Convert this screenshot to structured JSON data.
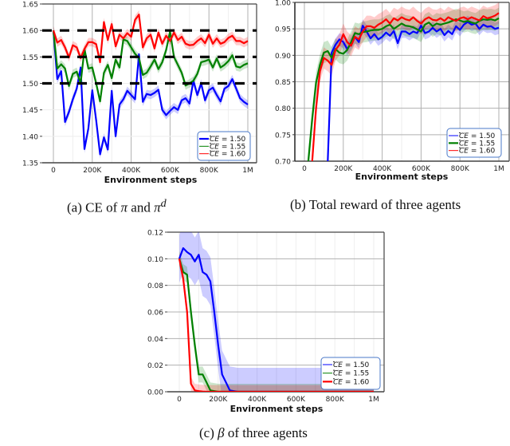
{
  "chart_data": [
    {
      "id": "a",
      "type": "line",
      "title": "",
      "caption": "(a) CE of π and π^d",
      "caption_parts": {
        "prefix": "(a) CE of ",
        "sym1": "π",
        "mid": " and ",
        "sym2": "π",
        "sup": "d"
      },
      "xlabel": "Environment steps",
      "ylabel": "",
      "xlim": [
        0,
        1000000
      ],
      "ylim": [
        1.35,
        1.65
      ],
      "xticks": [
        0,
        200000,
        400000,
        600000,
        800000,
        1000000
      ],
      "xtick_labels": [
        "0",
        "200K",
        "400K",
        "600K",
        "800K",
        "1M"
      ],
      "yticks": [
        1.35,
        1.4,
        1.45,
        1.5,
        1.55,
        1.6,
        1.65
      ],
      "ytick_labels": [
        "1.35",
        "1.40",
        "1.45",
        "1.50",
        "1.55",
        "1.60",
        "1.65"
      ],
      "grid": "vertical-major",
      "reference_lines": [
        1.6,
        1.55,
        1.5
      ],
      "legend_position": "lower right",
      "legend": [
        "CE = 1.50",
        "CE = 1.55",
        "CE = 1.60"
      ],
      "x": [
        0,
        20000,
        40000,
        60000,
        80000,
        100000,
        120000,
        140000,
        160000,
        180000,
        200000,
        220000,
        240000,
        260000,
        280000,
        300000,
        320000,
        340000,
        360000,
        380000,
        400000,
        420000,
        440000,
        460000,
        480000,
        500000,
        520000,
        540000,
        560000,
        580000,
        600000,
        620000,
        640000,
        660000,
        680000,
        700000,
        720000,
        740000,
        760000,
        780000,
        800000,
        820000,
        840000,
        860000,
        880000,
        900000,
        920000,
        940000,
        960000,
        980000,
        1000000
      ],
      "series": [
        {
          "name": "CE = 1.50",
          "color": "#0000ff",
          "band": 0.008,
          "values": [
            1.6,
            1.508,
            1.523,
            1.427,
            1.446,
            1.47,
            1.49,
            1.53,
            1.376,
            1.415,
            1.487,
            1.43,
            1.366,
            1.398,
            1.375,
            1.486,
            1.4,
            1.46,
            1.47,
            1.486,
            1.478,
            1.47,
            1.555,
            1.465,
            1.48,
            1.478,
            1.482,
            1.488,
            1.45,
            1.44,
            1.448,
            1.455,
            1.45,
            1.468,
            1.472,
            1.462,
            1.505,
            1.478,
            1.5,
            1.468,
            1.487,
            1.492,
            1.478,
            1.466,
            1.49,
            1.495,
            1.508,
            1.49,
            1.472,
            1.465,
            1.46
          ]
        },
        {
          "name": "CE = 1.55",
          "color": "#008000",
          "band": 0.008,
          "values": [
            1.6,
            1.528,
            1.536,
            1.528,
            1.495,
            1.518,
            1.522,
            1.5,
            1.565,
            1.528,
            1.53,
            1.5,
            1.466,
            1.52,
            1.535,
            1.51,
            1.545,
            1.53,
            1.583,
            1.58,
            1.568,
            1.556,
            1.548,
            1.516,
            1.52,
            1.532,
            1.545,
            1.527,
            1.54,
            1.563,
            1.598,
            1.55,
            1.535,
            1.52,
            1.496,
            1.5,
            1.505,
            1.518,
            1.54,
            1.542,
            1.545,
            1.53,
            1.547,
            1.53,
            1.535,
            1.542,
            1.553,
            1.532,
            1.53,
            1.535,
            1.538
          ]
        },
        {
          "name": "CE = 1.60",
          "color": "#ff0000",
          "band": 0.008,
          "values": [
            1.6,
            1.577,
            1.582,
            1.568,
            1.549,
            1.572,
            1.568,
            1.548,
            1.565,
            1.578,
            1.578,
            1.574,
            1.54,
            1.616,
            1.582,
            1.612,
            1.57,
            1.592,
            1.585,
            1.595,
            1.588,
            1.62,
            1.63,
            1.568,
            1.585,
            1.592,
            1.566,
            1.596,
            1.575,
            1.59,
            1.58,
            1.596,
            1.582,
            1.588,
            1.575,
            1.572,
            1.573,
            1.58,
            1.585,
            1.576,
            1.592,
            1.575,
            1.585,
            1.575,
            1.578,
            1.586,
            1.59,
            1.58,
            1.58,
            1.576,
            1.58
          ]
        }
      ]
    },
    {
      "id": "b",
      "type": "line",
      "title": "",
      "caption": "(b) Total reward of three agents",
      "xlabel": "Environment steps",
      "ylabel": "",
      "xlim": [
        0,
        1000000
      ],
      "ylim": [
        0.7,
        1.0
      ],
      "xticks": [
        0,
        200000,
        400000,
        600000,
        800000,
        1000000
      ],
      "xtick_labels": [
        "0",
        "200K",
        "400K",
        "600K",
        "800K",
        "1M"
      ],
      "yticks": [
        0.7,
        0.75,
        0.8,
        0.85,
        0.9,
        0.95,
        1.0
      ],
      "ytick_labels": [
        "0.70",
        "0.75",
        "0.80",
        "0.85",
        "0.90",
        "0.95",
        "1.00"
      ],
      "grid": "both",
      "legend_position": "lower right",
      "legend": [
        "CE = 1.50",
        "CE = 1.55",
        "CE = 1.60"
      ],
      "x": [
        0,
        20000,
        40000,
        60000,
        80000,
        100000,
        120000,
        140000,
        160000,
        180000,
        200000,
        220000,
        240000,
        260000,
        280000,
        300000,
        320000,
        340000,
        360000,
        380000,
        400000,
        420000,
        440000,
        460000,
        480000,
        500000,
        520000,
        540000,
        560000,
        580000,
        600000,
        620000,
        640000,
        660000,
        680000,
        700000,
        720000,
        740000,
        760000,
        780000,
        800000,
        820000,
        840000,
        860000,
        880000,
        900000,
        920000,
        940000,
        960000,
        980000,
        1000000
      ],
      "series": [
        {
          "name": "CE = 1.50",
          "color": "#0000ff",
          "band": 0.012,
          "values": [
            null,
            null,
            null,
            null,
            null,
            null,
            0.7,
            0.905,
            0.92,
            0.93,
            0.925,
            0.912,
            0.922,
            0.935,
            0.925,
            0.956,
            0.945,
            0.932,
            0.94,
            0.93,
            0.935,
            0.943,
            0.937,
            0.946,
            0.923,
            0.945,
            0.945,
            0.94,
            0.945,
            0.942,
            0.956,
            0.942,
            0.945,
            0.952,
            0.945,
            0.95,
            0.938,
            0.946,
            0.94,
            0.955,
            0.948,
            0.958,
            0.963,
            0.958,
            0.96,
            0.95,
            0.958,
            0.954,
            0.955,
            0.95,
            0.952
          ]
        },
        {
          "name": "CE = 1.55",
          "color": "#008000",
          "band": 0.02,
          "values": [
            null,
            0.7,
            0.78,
            0.848,
            0.882,
            0.905,
            0.908,
            0.895,
            0.912,
            0.905,
            0.903,
            0.91,
            0.925,
            0.942,
            0.94,
            0.944,
            0.945,
            0.947,
            0.948,
            0.948,
            0.95,
            0.955,
            0.958,
            0.95,
            0.955,
            0.96,
            0.956,
            0.955,
            0.953,
            0.949,
            0.945,
            0.958,
            0.962,
            0.955,
            0.96,
            0.958,
            0.96,
            0.962,
            0.965,
            0.968,
            0.966,
            0.963,
            0.965,
            0.962,
            0.96,
            0.965,
            0.968,
            0.967,
            0.968,
            0.966,
            0.97
          ]
        },
        {
          "name": "CE = 1.60",
          "color": "#ff0000",
          "band": 0.02,
          "values": [
            null,
            null,
            0.7,
            0.8,
            0.87,
            0.895,
            0.89,
            0.882,
            0.91,
            0.92,
            0.94,
            0.925,
            0.918,
            0.935,
            0.93,
            0.945,
            0.955,
            0.955,
            0.952,
            0.958,
            0.962,
            0.968,
            0.96,
            0.97,
            0.966,
            0.972,
            0.968,
            0.966,
            0.972,
            0.965,
            0.96,
            0.968,
            0.972,
            0.967,
            0.966,
            0.97,
            0.965,
            0.972,
            0.968,
            0.965,
            0.97,
            0.972,
            0.968,
            0.972,
            0.969,
            0.966,
            0.974,
            0.97,
            0.972,
            0.975,
            0.98
          ]
        }
      ]
    },
    {
      "id": "c",
      "type": "line",
      "title": "",
      "caption": "(c) β of three agents",
      "caption_parts": {
        "prefix": "(c) ",
        "sym": "β",
        "suffix": " of three agents"
      },
      "xlabel": "Environment steps",
      "ylabel": "",
      "xlim": [
        0,
        1000000
      ],
      "ylim": [
        0.0,
        0.12
      ],
      "xticks": [
        0,
        200000,
        400000,
        600000,
        800000,
        1000000
      ],
      "xtick_labels": [
        "0",
        "200K",
        "400K",
        "600K",
        "800K",
        "1M"
      ],
      "yticks": [
        0.0,
        0.02,
        0.04,
        0.06,
        0.08,
        0.1,
        0.12
      ],
      "ytick_labels": [
        "0.00",
        "0.02",
        "0.04",
        "0.06",
        "0.08",
        "0.10",
        "0.12"
      ],
      "grid": "horizontal-major",
      "legend_position": "lower right",
      "legend": [
        "CE = 1.50",
        "CE = 1.55",
        "CE = 1.60"
      ],
      "x": [
        0,
        20000,
        40000,
        60000,
        80000,
        100000,
        120000,
        140000,
        160000,
        180000,
        200000,
        220000,
        240000,
        260000,
        280000,
        300000,
        400000,
        600000,
        800000,
        1000000
      ],
      "series": [
        {
          "name": "CE = 1.50",
          "color": "#0000ff",
          "band": 0.018,
          "values": [
            0.1,
            0.108,
            0.105,
            0.103,
            0.098,
            0.103,
            0.09,
            0.088,
            0.083,
            0.06,
            0.035,
            0.013,
            0.007,
            0.001,
            0.0005,
            0.0,
            0.0,
            0.0,
            0.0,
            0.0
          ]
        },
        {
          "name": "CE = 1.55",
          "color": "#008000",
          "band": 0.006,
          "values": [
            0.1,
            0.09,
            0.088,
            0.06,
            0.035,
            0.013,
            0.013,
            0.007,
            0.001,
            0.0005,
            0.0,
            0.0,
            0.0,
            0.0,
            0.0,
            0.0,
            0.0,
            0.0,
            0.0,
            0.0
          ]
        },
        {
          "name": "CE = 1.60",
          "color": "#ff0000",
          "band": 0.005,
          "values": [
            0.1,
            0.085,
            0.06,
            0.006,
            0.001,
            0.0005,
            0.0002,
            0.0,
            0.0,
            0.0,
            0.0,
            0.0,
            0.0,
            0.0,
            0.0,
            0.0,
            0.0,
            0.0,
            0.0,
            0.0
          ]
        }
      ]
    }
  ],
  "captions": {
    "a": {
      "prefix": "(a) CE of ",
      "sym1": "π",
      "mid": " and ",
      "sym2": "π",
      "sup": "d"
    },
    "b": {
      "text": "(b) Total reward of three agents"
    },
    "c": {
      "prefix": "(c) ",
      "sym": "β",
      "suffix": " of three agents"
    }
  },
  "legend_label": {
    "symbol": "CE",
    "eq": " = "
  },
  "legend_values": [
    "1.50",
    "1.55",
    "1.60"
  ]
}
